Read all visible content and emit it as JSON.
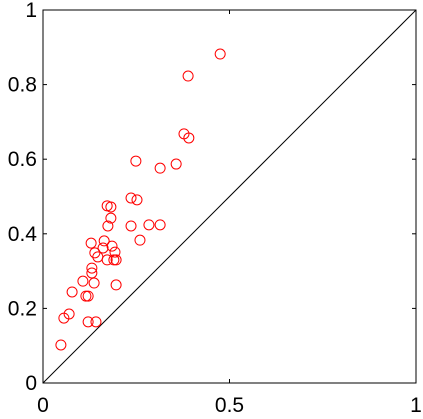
{
  "chart_data": {
    "type": "scatter",
    "color": "#ff0000",
    "x": [
      0.475,
      0.389,
      0.378,
      0.391,
      0.249,
      0.357,
      0.314,
      0.236,
      0.252,
      0.172,
      0.182,
      0.182,
      0.174,
      0.284,
      0.314,
      0.236,
      0.26,
      0.129,
      0.164,
      0.161,
      0.185,
      0.139,
      0.147,
      0.193,
      0.172,
      0.19,
      0.196,
      0.131,
      0.131,
      0.107,
      0.137,
      0.078,
      0.115,
      0.121,
      0.196,
      0.121,
      0.142,
      0.07,
      0.056,
      0.048
    ],
    "values": [
      0.882,
      0.823,
      0.668,
      0.657,
      0.595,
      0.587,
      0.576,
      0.496,
      0.491,
      0.475,
      0.472,
      0.442,
      0.421,
      0.424,
      0.424,
      0.421,
      0.383,
      0.375,
      0.381,
      0.362,
      0.367,
      0.349,
      0.338,
      0.351,
      0.33,
      0.33,
      0.33,
      0.308,
      0.295,
      0.273,
      0.268,
      0.244,
      0.233,
      0.233,
      0.263,
      0.164,
      0.164,
      0.185,
      0.174,
      0.102
    ],
    "xlim": [
      0,
      1
    ],
    "ylim": [
      0,
      1
    ],
    "xticks": [
      0,
      0.5,
      1
    ],
    "yticks": [
      0,
      0.2,
      0.4,
      0.6,
      0.8,
      1
    ]
  }
}
